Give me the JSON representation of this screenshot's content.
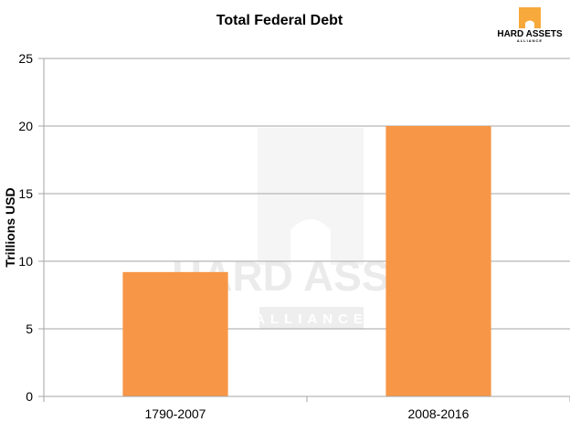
{
  "chart_data": {
    "type": "bar",
    "title": "Total Federal Debt",
    "ylabel": "Trillions USD",
    "xlabel": "",
    "categories": [
      "1790-2007",
      "2008-2016"
    ],
    "values": [
      9.2,
      20.0
    ],
    "ylim": [
      0,
      25
    ],
    "yticks": [
      0,
      5,
      10,
      15,
      20,
      25
    ],
    "grid": true,
    "bar_color": "#f79646",
    "grid_color": "#a6a6a6"
  },
  "logo": {
    "name": "HARD ASSETS",
    "sub": "ALLIANCE",
    "accent": "#f7a93b"
  },
  "watermark": {
    "name": "HARD ASSETS",
    "sub": "ALLIANCE"
  }
}
